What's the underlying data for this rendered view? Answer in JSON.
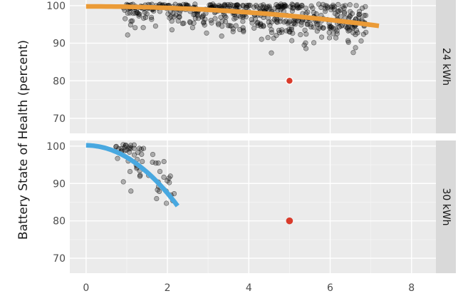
{
  "chart_data": {
    "type": "scatter",
    "ylabel": "Battery State of Health (percent)",
    "xlabel": "",
    "xlim": [
      -0.4,
      8.6
    ],
    "x_ticks": [
      0,
      2,
      4,
      6,
      8
    ],
    "grid": true,
    "colors": {
      "panel_bg": "#ebebeb",
      "grid_major": "#ffffff",
      "strip_bg": "#d9d9d9",
      "points": "#000000",
      "highlight_point": "#d93b2b",
      "fit_24": "#eb9b37",
      "fit_30": "#48a8e0"
    },
    "panels": [
      {
        "strip": "24 kWh",
        "ylim": [
          66,
          101.5
        ],
        "y_ticks": [
          70,
          80,
          90,
          100
        ],
        "trend": {
          "color": "#eb9b37",
          "x_start": 0,
          "x_end": 7.2,
          "x_peak": 0,
          "y_peak": 99.8,
          "curvature": 0.1
        },
        "clusters": [
          {
            "n": 150,
            "x_min": 0.9,
            "x_max": 2.9,
            "mean_offset": 0,
            "sd": 2.8
          },
          {
            "n": 110,
            "x_min": 2.9,
            "x_max": 4.2,
            "mean_offset": 0,
            "sd": 3.6
          },
          {
            "n": 140,
            "x_min": 4.2,
            "x_max": 5.6,
            "mean_offset": 0,
            "sd": 3.8
          },
          {
            "n": 120,
            "x_min": 5.6,
            "x_max": 6.9,
            "mean_offset": 0,
            "sd": 3.2
          }
        ],
        "highlight": {
          "x": 5.0,
          "y": 80
        }
      },
      {
        "strip": "30 kWh",
        "ylim": [
          66,
          101.5
        ],
        "y_ticks": [
          70,
          80,
          90,
          100
        ],
        "trend": {
          "color": "#48a8e0",
          "x_start": 0,
          "x_end": 2.25,
          "x_peak": 0,
          "y_peak": 100.2,
          "curvature": 3.2
        },
        "clusters": [
          {
            "n": 60,
            "x_min": 0.7,
            "x_max": 2.2,
            "mean_offset": 1.5,
            "sd": 4.2
          }
        ],
        "highlight": {
          "x": 5.0,
          "y": 80
        }
      }
    ]
  }
}
